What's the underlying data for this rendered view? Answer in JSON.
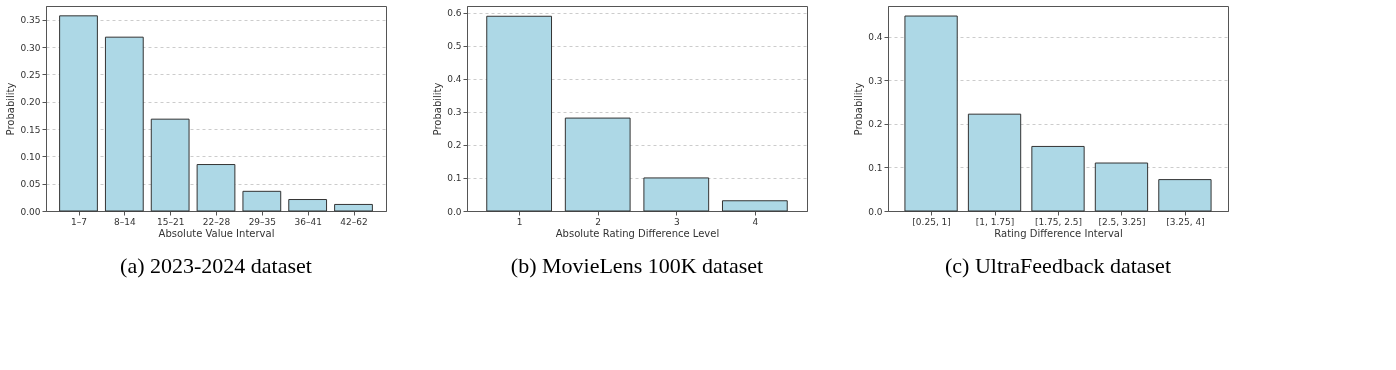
{
  "chart_data": [
    {
      "type": "bar",
      "title": "(a) 2023-2024 dataset",
      "xlabel": "Absolute Value Interval",
      "ylabel": "Probability",
      "categories": [
        "1–7",
        "8–14",
        "15–21",
        "22–28",
        "29–35",
        "36–41",
        "42–62"
      ],
      "values": [
        0.357,
        0.318,
        0.168,
        0.085,
        0.036,
        0.021,
        0.012
      ],
      "color": "#add8e6",
      "ylim": [
        0,
        0.375
      ],
      "yticks": [
        {
          "value": 0,
          "label": "0.00"
        },
        0.05,
        {
          "value": 0.1,
          "label": "0.10"
        },
        0.15,
        {
          "value": 0.2,
          "label": "0.20"
        },
        0.25,
        {
          "value": 0.3,
          "label": "0.30"
        },
        0.35
      ],
      "grid": "y"
    },
    {
      "type": "bar",
      "title": "(b) MovieLens 100K dataset",
      "xlabel": "Absolute Rating Difference Level",
      "ylabel": "Probability",
      "categories": [
        "1",
        "2",
        "3",
        "4"
      ],
      "values": [
        0.589,
        0.281,
        0.1,
        0.031
      ],
      "color": "#add8e6",
      "ylim": [
        0,
        0.62
      ],
      "yticks": [
        {
          "value": 0,
          "label": "0.0"
        },
        0.1,
        0.2,
        0.3,
        0.4,
        0.5,
        0.6
      ],
      "grid": "y"
    },
    {
      "type": "bar",
      "title": "(c) UltraFeedback dataset",
      "xlabel": "Rating Difference Interval",
      "ylabel": "Probability",
      "categories": [
        "[0.25, 1]",
        "[1, 1.75]",
        "[1.75, 2.5]",
        "[2.5, 3.25]",
        "[3.25, 4]"
      ],
      "values": [
        0.447,
        0.222,
        0.148,
        0.11,
        0.072
      ],
      "color": "#add8e6",
      "ylim": [
        0,
        0.47
      ],
      "yticks": [
        {
          "value": 0,
          "label": "0.0"
        },
        0.1,
        0.2,
        0.3,
        0.4
      ],
      "grid": "y"
    }
  ]
}
